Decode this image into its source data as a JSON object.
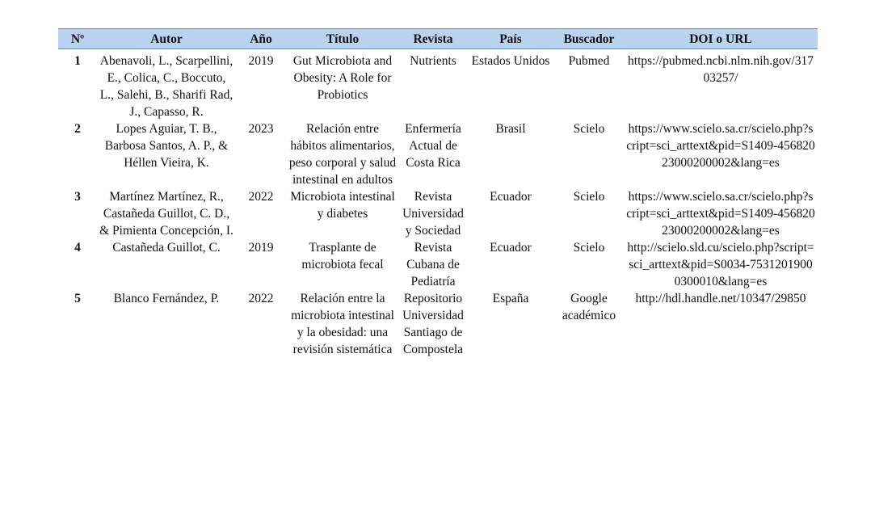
{
  "table": {
    "headers": [
      "Nº",
      "Autor",
      "Año",
      "Título",
      "Revista",
      "País",
      "Buscador",
      "DOI o URL"
    ],
    "rows": [
      {
        "num": "1",
        "autor": "Abenavoli, L., Scarpellini, E., Colica, C., Boccuto, L., Salehi, B., Sharifi Rad, J., Capasso, R.",
        "anio": "2019",
        "titulo": "Gut Microbiota and Obesity: A Role for Probiotics",
        "revista": "Nutrients",
        "pais": "Estados Unidos",
        "buscador": "Pubmed",
        "url": "https://pubmed.ncbi.nlm.nih.gov/31703257/"
      },
      {
        "num": "2",
        "autor": "Lopes Aguiar, T. B., Barbosa Santos, A. P., & Héllen Vieira, K.",
        "anio": "2023",
        "titulo": "Relación entre hábitos alimentarios, peso corporal y salud intestinal en adultos",
        "revista": "Enfermería Actual de Costa Rica",
        "pais": "Brasil",
        "buscador": "Scielo",
        "url": "https://www.scielo.sa.cr/scielo.php?script=sci_arttext&pid=S1409-45682023000200002&lang=es"
      },
      {
        "num": "3",
        "autor": "Martínez Martínez, R., Castañeda Guillot, C. D., & Pimienta Concepción, I.",
        "anio": "2022",
        "titulo": "Microbiota intestinal y diabetes",
        "revista": "Revista Universidad y Sociedad",
        "pais": "Ecuador",
        "buscador": "Scielo",
        "url": "https://www.scielo.sa.cr/scielo.php?script=sci_arttext&pid=S1409-45682023000200002&lang=es"
      },
      {
        "num": "4",
        "autor": "Castañeda Guillot, C.",
        "anio": "2019",
        "titulo": "Trasplante de microbiota fecal",
        "revista": "Revista Cubana de Pediatría",
        "pais": "Ecuador",
        "buscador": "Scielo",
        "url": "http://scielo.sld.cu/scielo.php?script=sci_arttext&pid=S0034-75312019000300010&lang=es"
      },
      {
        "num": "5",
        "autor": "Blanco Fernández, P.",
        "anio": "2022",
        "titulo": "Relación entre la microbiota intestinal y la obesidad: una revisión sistemática",
        "revista": "Repositorio Universidad Santiago de Compostela",
        "pais": "España",
        "buscador": "Google académico",
        "url": "http://hdl.handle.net/10347/29850"
      }
    ]
  }
}
